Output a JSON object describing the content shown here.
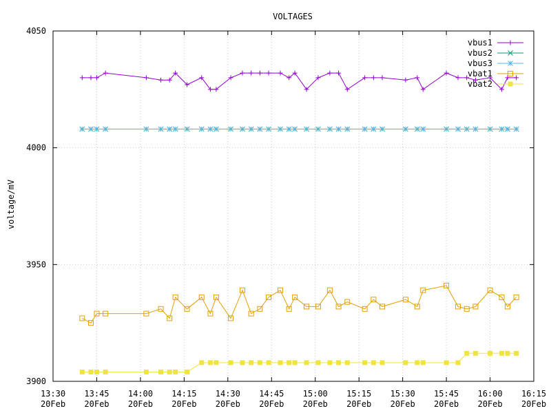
{
  "chart_data": {
    "type": "line",
    "title": "VOLTAGES",
    "ylabel": "voltage/mV",
    "xlabel": "",
    "ylim": [
      3900,
      4050
    ],
    "xlim": [
      "13:30",
      "16:15"
    ],
    "x_unit": "time (20Feb)",
    "grid": true,
    "legend": "top-right",
    "x_ticks": [
      {
        "t": "13:30",
        "date": "20Feb"
      },
      {
        "t": "13:45",
        "date": "20Feb"
      },
      {
        "t": "14:00",
        "date": "20Feb"
      },
      {
        "t": "14:15",
        "date": "20Feb"
      },
      {
        "t": "14:30",
        "date": "20Feb"
      },
      {
        "t": "14:45",
        "date": "20Feb"
      },
      {
        "t": "15:00",
        "date": "20Feb"
      },
      {
        "t": "15:15",
        "date": "20Feb"
      },
      {
        "t": "15:30",
        "date": "20Feb"
      },
      {
        "t": "15:45",
        "date": "20Feb"
      },
      {
        "t": "16:00",
        "date": "20Feb"
      },
      {
        "t": "16:15",
        "date": "20Feb"
      }
    ],
    "y_ticks": [
      "3900",
      "3950",
      "4000",
      "4050"
    ],
    "x": [
      "13:40",
      "13:43",
      "13:45",
      "13:48",
      "14:02",
      "14:07",
      "14:10",
      "14:12",
      "14:16",
      "14:21",
      "14:24",
      "14:26",
      "14:31",
      "14:35",
      "14:38",
      "14:41",
      "14:44",
      "14:48",
      "14:51",
      "14:53",
      "14:57",
      "15:01",
      "15:05",
      "15:08",
      "15:11",
      "15:17",
      "15:20",
      "15:23",
      "15:31",
      "15:35",
      "15:37",
      "15:45",
      "15:49",
      "15:52",
      "15:55",
      "16:00",
      "16:04",
      "16:06",
      "16:09"
    ],
    "series": [
      {
        "name": "vbus1",
        "color": "#9400d3",
        "marker": "plus",
        "values": [
          4030,
          4030,
          4030,
          4032,
          4030,
          4029,
          4029,
          4032,
          4027,
          4030,
          4025,
          4025,
          4030,
          4032,
          4032,
          4032,
          4032,
          4032,
          4030,
          4032,
          4025,
          4030,
          4032,
          4032,
          4025,
          4030,
          4030,
          4030,
          4029,
          4030,
          4025,
          4032,
          4030,
          4030,
          4029,
          4030,
          4025,
          4030,
          4030
        ]
      },
      {
        "name": "vbus2",
        "color": "#009e73",
        "marker": "x",
        "values": [
          4008,
          4008,
          4008,
          4008,
          4008,
          4008,
          4008,
          4008,
          4008,
          4008,
          4008,
          4008,
          4008,
          4008,
          4008,
          4008,
          4008,
          4008,
          4008,
          4008,
          4008,
          4008,
          4008,
          4008,
          4008,
          4008,
          4008,
          4008,
          4008,
          4008,
          4008,
          4008,
          4008,
          4008,
          4008,
          4008,
          4008,
          4008,
          4008
        ]
      },
      {
        "name": "vbus3",
        "color": "#56b4e9",
        "marker": "star",
        "values": [
          4008,
          4008,
          4008,
          4008,
          4008,
          4008,
          4008,
          4008,
          4008,
          4008,
          4008,
          4008,
          4008,
          4008,
          4008,
          4008,
          4008,
          4008,
          4008,
          4008,
          4008,
          4008,
          4008,
          4008,
          4008,
          4008,
          4008,
          4008,
          4008,
          4008,
          4008,
          4008,
          4008,
          4008,
          4008,
          4008,
          4008,
          4008,
          4008
        ]
      },
      {
        "name": "vbat1",
        "color": "#e69f00",
        "marker": "open-square",
        "values": [
          3927,
          3925,
          3929,
          3929,
          3929,
          3931,
          3927,
          3936,
          3931,
          3936,
          3929,
          3936,
          3927,
          3939,
          3929,
          3931,
          3936,
          3939,
          3931,
          3936,
          3932,
          3932,
          3939,
          3932,
          3934,
          3931,
          3935,
          3932,
          3935,
          3932,
          3939,
          3941,
          3932,
          3931,
          3932,
          3939,
          3936,
          3932,
          3936
        ]
      },
      {
        "name": "vbat2",
        "color": "#f0e442",
        "marker": "filled-square",
        "values": [
          3904,
          3904,
          3904,
          3904,
          3904,
          3904,
          3904,
          3904,
          3904,
          3908,
          3908,
          3908,
          3908,
          3908,
          3908,
          3908,
          3908,
          3908,
          3908,
          3908,
          3908,
          3908,
          3908,
          3908,
          3908,
          3908,
          3908,
          3908,
          3908,
          3908,
          3908,
          3908,
          3908,
          3912,
          3912,
          3912,
          3912,
          3912,
          3912
        ]
      }
    ]
  }
}
